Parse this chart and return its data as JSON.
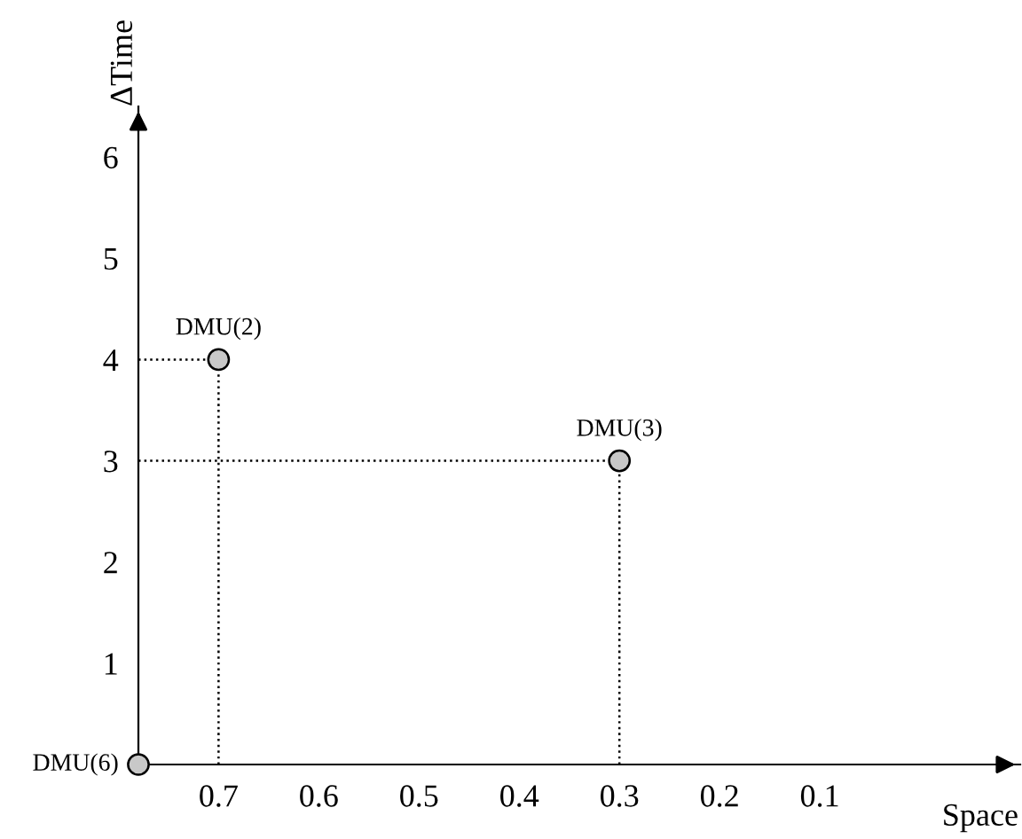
{
  "chart_data": {
    "type": "scatter",
    "xlabel": "Space",
    "ylabel": "ΔTime",
    "x": [
      0.78,
      0.7,
      0.3
    ],
    "series": [
      {
        "color": "#c8c8c8",
        "values": [
          0,
          4,
          3
        ]
      }
    ],
    "marker": "circle",
    "grid": false,
    "xlim": [
      0.78,
      -0.1
    ],
    "xticks": [
      0.7,
      0.6,
      0.5,
      0.4,
      0.3,
      0.2,
      0.1
    ],
    "ylim": [
      0,
      6.5
    ],
    "yticks": [
      1,
      2,
      3,
      4,
      5,
      6
    ],
    "annotations": [
      {
        "text": "DMU(6)",
        "x": 0.78,
        "y": 0
      },
      {
        "text": "DMU(2)",
        "x": 0.7,
        "y": 4
      },
      {
        "text": "DMU(3)",
        "x": 0.3,
        "y": 3
      }
    ]
  }
}
